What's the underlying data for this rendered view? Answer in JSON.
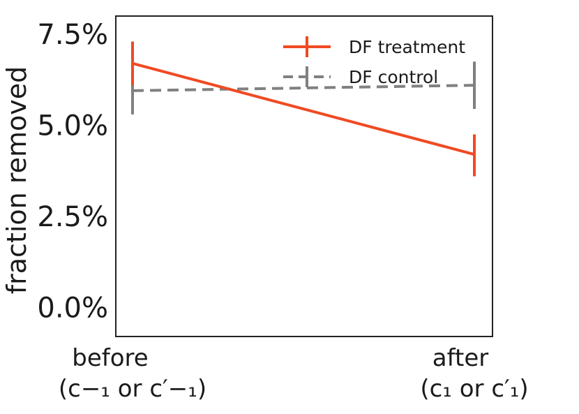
{
  "chart_data": {
    "type": "line",
    "categories": [
      "before",
      "after"
    ],
    "category_sublabels": [
      "(c−₁ or c′−₁)",
      "(c₁ or c′₁)"
    ],
    "title": "",
    "xlabel": "",
    "ylabel": "fraction removed",
    "ylim": [
      -0.8,
      8.0
    ],
    "yticks": [
      0.0,
      2.5,
      5.0,
      7.5
    ],
    "ytick_labels": [
      "0.0%",
      "2.5%",
      "5.0%",
      "7.5%"
    ],
    "grid": false,
    "legend_position": "top-right",
    "series": [
      {
        "name": "DF treatment",
        "color": "#f04a23",
        "linestyle": "solid",
        "values": [
          6.7,
          4.2
        ],
        "error_low": [
          6.1,
          3.6
        ],
        "error_high": [
          7.3,
          4.75
        ]
      },
      {
        "name": "DF control",
        "color": "#808080",
        "linestyle": "dashed",
        "values": [
          5.95,
          6.1
        ],
        "error_low": [
          5.3,
          5.45
        ],
        "error_high": [
          6.6,
          6.75
        ]
      }
    ]
  }
}
